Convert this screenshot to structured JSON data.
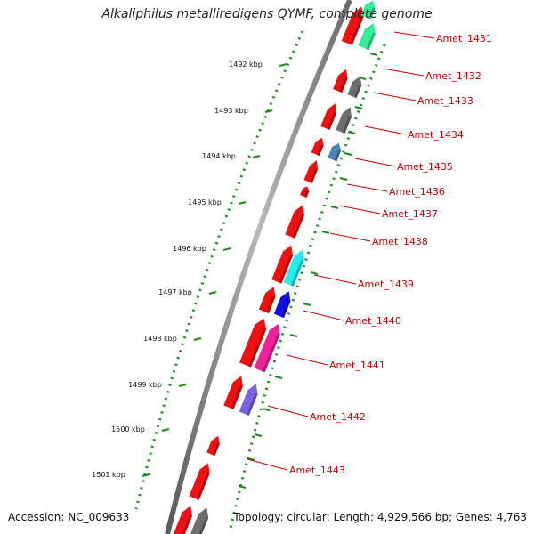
{
  "title": "Alkaliphilus metalliredigens QYMF, complete genome",
  "accession": "Accession: NC_009633",
  "topology": "Topology: circular; Length: 4,929,566 bp; Genes: 4,763",
  "kbp_ticks": [
    "1492 kbp",
    "1493 kbp",
    "1494 kbp",
    "1495 kbp",
    "1496 kbp",
    "1497 kbp",
    "1498 kbp",
    "1499 kbp",
    "1500 kbp",
    "1501 kbp"
  ],
  "gene_labels": [
    "Amet_1431",
    "Amet_1432",
    "Amet_1433",
    "Amet_1434",
    "Amet_1435",
    "Amet_1436",
    "Amet_1437",
    "Amet_1438",
    "Amet_1439",
    "Amet_1440",
    "Amet_1441",
    "Amet_1442",
    "Amet_1443"
  ],
  "colors": {
    "backbone": "#8a8a8a",
    "tick": "#1a8a1a",
    "gene_forward": "#ee1111",
    "label_text": "#cc0000",
    "cog_green": "#33ee99",
    "cog_gray": "#6e6e6e",
    "cog_steelblue": "#4a86b8",
    "cog_cyan": "#22eeee",
    "cog_blue": "#1010e0",
    "cog_pink": "#ee2299",
    "cog_purple": "#7a62dd"
  }
}
